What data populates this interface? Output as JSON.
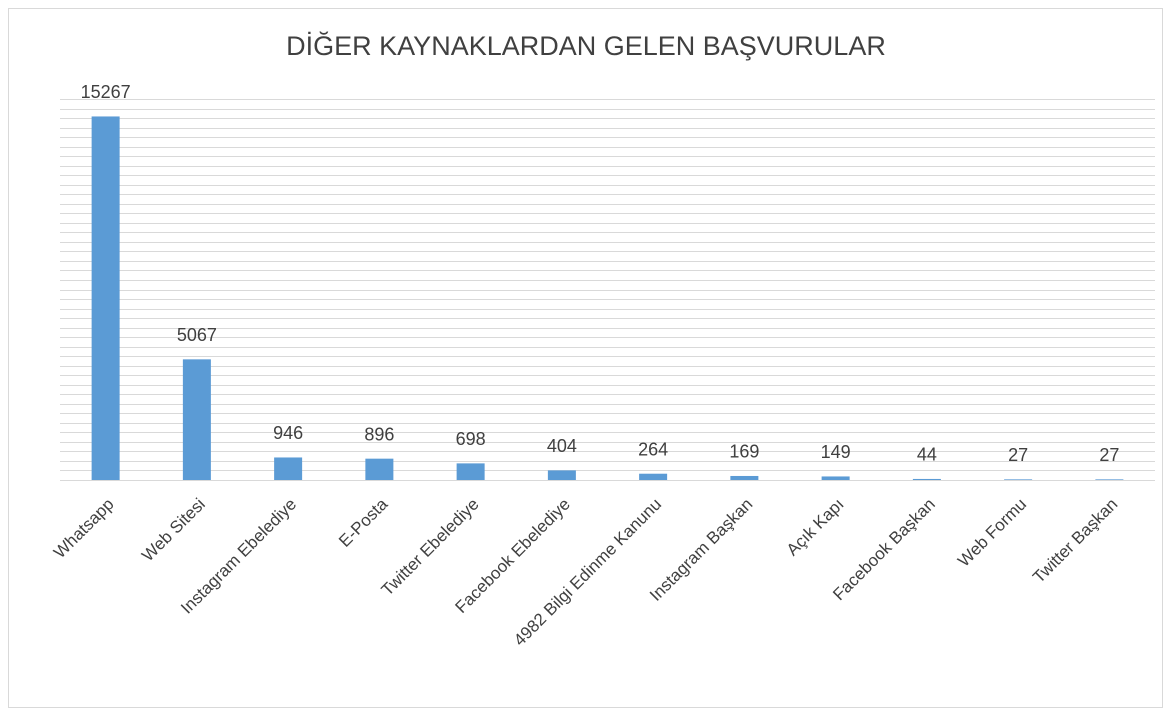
{
  "chart_data": {
    "type": "bar",
    "title": "DİĞER KAYNAKLARDAN GELEN BAŞVURULAR",
    "categories": [
      "Whatsapp",
      "Web Sitesi",
      "Instagram Ebelediye",
      "E-Posta",
      "Twitter Ebelediye",
      "Facebook Ebelediye",
      "4982 Bilgi Edinme Kanunu",
      "Instagram Başkan",
      "Açık Kapı",
      "Facebook Başkan",
      "Web Formu",
      "Twitter Başkan"
    ],
    "values": [
      15267,
      5067,
      946,
      896,
      698,
      404,
      264,
      169,
      149,
      44,
      27,
      27
    ],
    "color": "#5b9bd5",
    "ylim": [
      0,
      16000
    ],
    "yticks": [
      0,
      400,
      800,
      1200,
      1600,
      2000,
      2400,
      2800,
      3200,
      3600,
      4000,
      4400,
      4800,
      5200,
      5600,
      6000,
      6400,
      6800,
      7200,
      7600,
      8000,
      8400,
      8800,
      9200,
      9600,
      10000,
      10400,
      10800,
      11200,
      11600,
      12000,
      12400,
      12800,
      13200,
      13600,
      14000,
      14400,
      14800,
      15200,
      15600,
      16000
    ],
    "grid": true
  }
}
